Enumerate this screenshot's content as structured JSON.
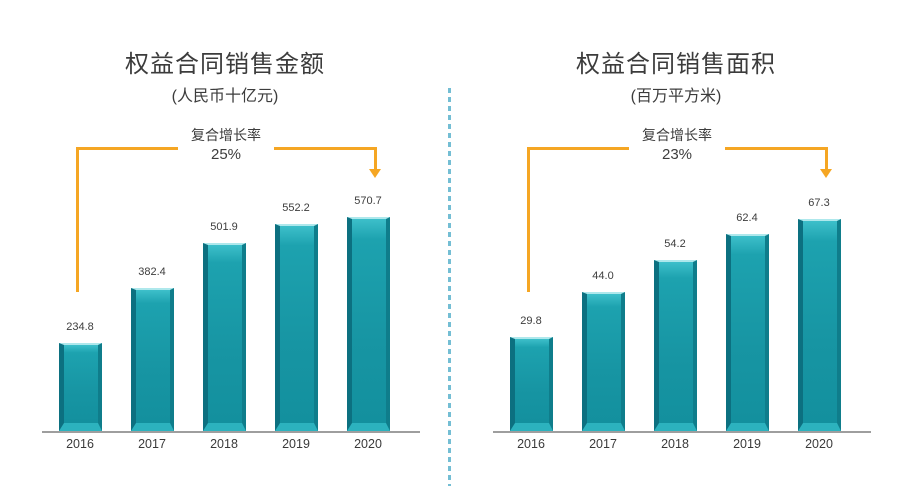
{
  "colors": {
    "bar_main": "#1795A3",
    "bar_highlight": "#3DBFCA",
    "bar_dark_edge": "#0C7080",
    "bar_bottom_bevel": "#2CB2BE",
    "arrow_orange": "#F5A623",
    "axis_gray": "#9E9E9E",
    "divider_blue": "#74BED4",
    "text_dark": "#3D3D3D",
    "background": "#FFFFFF"
  },
  "chart_data": [
    {
      "type": "bar",
      "title": "权益合同销售金额",
      "subtitle": "(人民币十亿元)",
      "annotation": {
        "label": "复合增长率",
        "value": "25%"
      },
      "categories": [
        "2016",
        "2017",
        "2018",
        "2019",
        "2020"
      ],
      "values": [
        234.8,
        382.4,
        501.9,
        552.2,
        570.7
      ],
      "value_labels": [
        "234.8",
        "382.4",
        "501.9",
        "552.2",
        "570.7"
      ],
      "xlabel": "",
      "ylabel": "",
      "ylim": [
        0,
        600
      ],
      "grid": false,
      "legend": "none",
      "bar_color_name": "teal-3d-bevel"
    },
    {
      "type": "bar",
      "title": "权益合同销售面积",
      "subtitle": "(百万平方米)",
      "annotation": {
        "label": "复合增长率",
        "value": "23%"
      },
      "categories": [
        "2016",
        "2017",
        "2018",
        "2019",
        "2020"
      ],
      "values": [
        29.8,
        44.0,
        54.2,
        62.4,
        67.3
      ],
      "value_labels": [
        "29.8",
        "44.0",
        "54.2",
        "62.4",
        "67.3"
      ],
      "xlabel": "",
      "ylabel": "",
      "ylim": [
        0,
        72
      ],
      "grid": false,
      "legend": "none",
      "bar_color_name": "teal-3d-bevel"
    }
  ]
}
